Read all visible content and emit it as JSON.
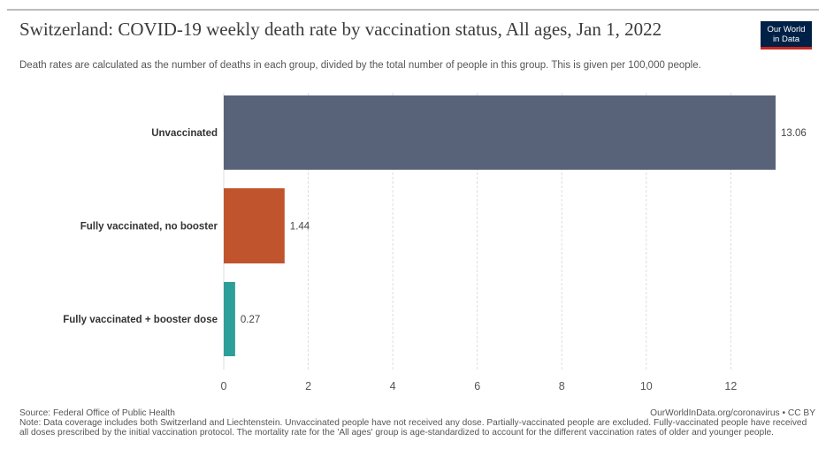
{
  "title": "Switzerland: COVID-19 weekly death rate by vaccination status, All ages, Jan 1, 2022",
  "subtitle": "Death rates are calculated as the number of deaths in each group, divided by the total number of people in this group. This is given per 100,000 people.",
  "logo": {
    "line1": "Our World",
    "line2": "in Data"
  },
  "footer": {
    "source": "Source: Federal Office of Public Health",
    "url": "OurWorldInData.org/coronavirus • CC BY",
    "note": "Note: Data coverage includes both Switzerland and Liechtenstein. Unvaccinated people have not received any dose. Partially-vaccinated people are excluded. Fully-vaccinated people have received all doses prescribed by the initial vaccination protocol. The mortality rate for the 'All ages' group is age-standardized to account for the different vaccination rates of older and younger people."
  },
  "chart_data": {
    "type": "bar",
    "orientation": "horizontal",
    "categories": [
      "Unvaccinated",
      "Fully vaccinated, no booster",
      "Fully vaccinated + booster dose"
    ],
    "values": [
      13.06,
      1.44,
      0.27
    ],
    "value_labels": [
      "13.06",
      "1.44",
      "0.27"
    ],
    "colors": [
      "#58637a",
      "#c0542c",
      "#2e9e99"
    ],
    "xlim": [
      0,
      13.06
    ],
    "xticks": [
      0,
      2,
      4,
      6,
      8,
      10,
      12
    ],
    "grid": true
  }
}
